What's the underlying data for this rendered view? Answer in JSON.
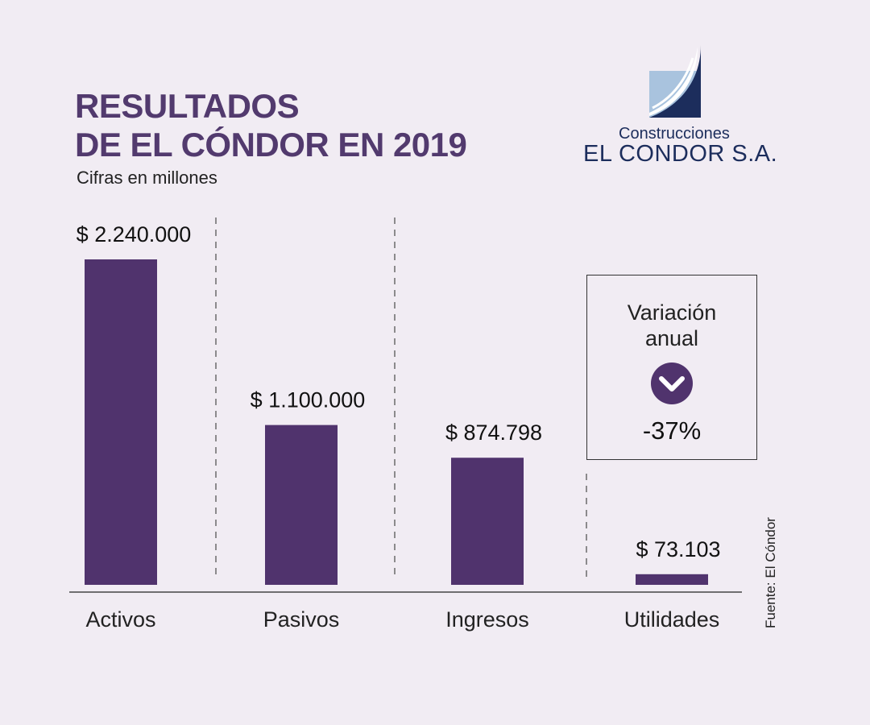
{
  "header": {
    "title_line1": "RESULTADOS",
    "title_line2": "DE EL CÓNDOR EN 2019",
    "subtitle": "Cifras en millones"
  },
  "logo": {
    "line1": "Construcciones",
    "line2": "EL CONDOR S.A."
  },
  "variation": {
    "label_line1": "Variación",
    "label_line2": "anual",
    "value": "-37%",
    "icon": "chevron-down-icon"
  },
  "source": "Fuente: El Cóndor",
  "colors": {
    "bar": "#50336d",
    "title": "#523a6e",
    "background": "#f1ecf3",
    "logo_dark": "#1c2d5c",
    "logo_light": "#a9c3de"
  },
  "chart_data": {
    "type": "bar",
    "title": "RESULTADOS DE EL CÓNDOR EN 2019",
    "subtitle": "Cifras en millones",
    "categories": [
      "Activos",
      "Pasivos",
      "Ingresos",
      "Utilidades"
    ],
    "values": [
      2240000,
      1100000,
      874798,
      73103
    ],
    "value_labels": [
      "$ 2.240.000",
      "$ 1.100.000",
      "$ 874.798",
      "$ 73.103"
    ],
    "ylim": [
      0,
      2240000
    ],
    "xlabel": "",
    "ylabel": "",
    "grid": false
  }
}
